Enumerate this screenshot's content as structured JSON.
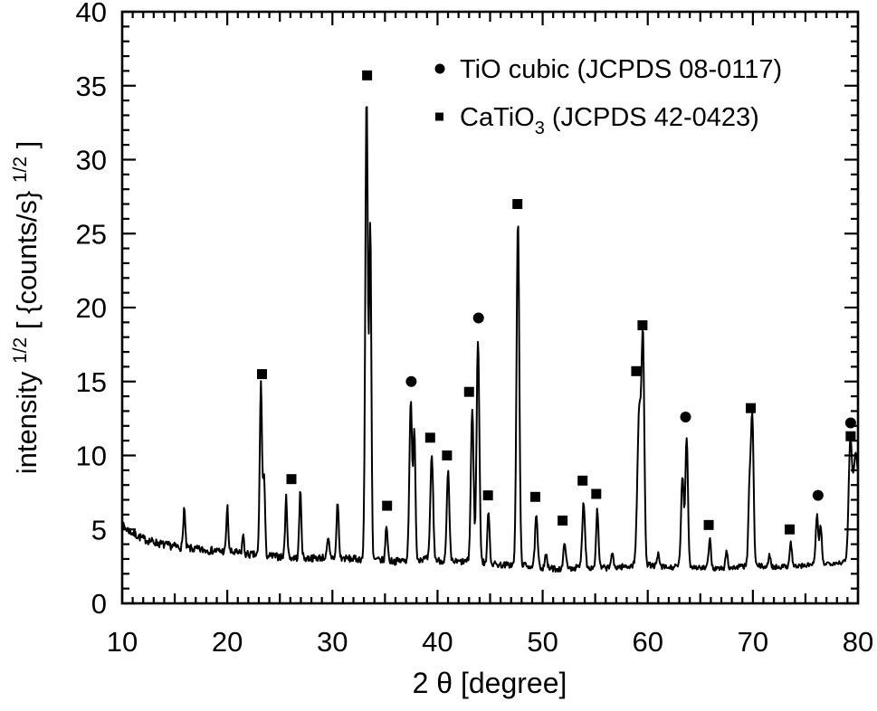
{
  "figure": {
    "background_color": "#ffffff",
    "ink_color": "#000000",
    "description": "Powder X-ray diffraction pattern with phase-identification markers"
  },
  "legend": {
    "items": [
      {
        "marker": "circle-icon",
        "label_parts": [
          {
            "t": "TiO cubic (JCPDS 08-0117)"
          }
        ],
        "label_plain": "TiO cubic (JCPDS 08-0117)"
      },
      {
        "marker": "square-icon",
        "label_parts": [
          {
            "t": "CaTiO"
          },
          {
            "t": "3",
            "style": "sub"
          },
          {
            "t": " (JCPDS 42-0423)"
          }
        ],
        "label_plain": "CaTiO3 (JCPDS 42-0423)"
      }
    ]
  },
  "chart_data": {
    "type": "line",
    "title": "",
    "xlabel": "2 θ [degree]",
    "ylabel_plain": "intensity 1/2 [ {counts/s} 1/2 ]",
    "ylabel_parts": [
      {
        "t": "intensity "
      },
      {
        "t": "1/2",
        "style": "sup"
      },
      {
        "t": " [ {counts/s} "
      },
      {
        "t": "1/2",
        "style": "sup"
      },
      {
        "t": " ]"
      }
    ],
    "xlim": [
      10,
      80
    ],
    "ylim": [
      0,
      40
    ],
    "grid": false,
    "legend_position": "top-right-inside",
    "x_major_ticks": [
      10,
      20,
      30,
      40,
      50,
      60,
      70,
      80
    ],
    "x_tick_labels": [
      "10",
      "20",
      "30",
      "40",
      "50",
      "60",
      "70",
      "80"
    ],
    "x_medium_step": 5,
    "x_minor_step": 1,
    "y_major_ticks": [
      0,
      5,
      10,
      15,
      20,
      25,
      30,
      35,
      40
    ],
    "y_tick_labels": [
      "0",
      "5",
      "10",
      "15",
      "20",
      "25",
      "30",
      "35",
      "40"
    ],
    "y_minor_step": 1,
    "curve": {
      "units": "x in degrees 2-theta, y in sqrt(counts/s)",
      "baseline": [
        [
          10,
          5.25
        ],
        [
          11,
          4.75
        ],
        [
          12,
          4.35
        ],
        [
          13,
          4.15
        ],
        [
          14,
          3.95
        ],
        [
          15,
          3.85
        ],
        [
          16,
          3.75
        ],
        [
          17,
          3.65
        ],
        [
          18,
          3.6
        ],
        [
          19,
          3.55
        ],
        [
          20,
          3.5
        ],
        [
          21,
          3.4
        ],
        [
          22,
          3.3
        ],
        [
          23,
          3.25
        ],
        [
          24,
          3.2
        ],
        [
          25,
          3.15
        ],
        [
          26,
          3.1
        ],
        [
          27,
          3.05
        ],
        [
          28,
          3.05
        ],
        [
          29,
          3.1
        ],
        [
          30,
          3.1
        ],
        [
          31,
          3.05
        ],
        [
          32,
          3.0
        ],
        [
          33,
          3.0
        ],
        [
          34,
          2.95
        ],
        [
          35,
          2.9
        ],
        [
          36,
          2.85
        ],
        [
          37,
          2.9
        ],
        [
          38,
          3.0
        ],
        [
          39,
          3.0
        ],
        [
          40,
          2.9
        ],
        [
          41,
          2.85
        ],
        [
          42,
          2.8
        ],
        [
          43,
          2.85
        ],
        [
          44,
          2.8
        ],
        [
          45,
          2.7
        ],
        [
          46,
          2.6
        ],
        [
          47,
          2.6
        ],
        [
          48,
          2.6
        ],
        [
          49,
          2.5
        ],
        [
          50,
          2.4
        ],
        [
          51,
          2.35
        ],
        [
          52,
          2.3
        ],
        [
          53,
          2.4
        ],
        [
          54,
          2.45
        ],
        [
          55,
          2.4
        ],
        [
          56,
          2.4
        ],
        [
          57,
          2.45
        ],
        [
          58,
          2.5
        ],
        [
          59,
          2.6
        ],
        [
          60,
          2.6
        ],
        [
          61,
          2.5
        ],
        [
          62,
          2.4
        ],
        [
          63,
          2.5
        ],
        [
          64,
          2.5
        ],
        [
          65,
          2.4
        ],
        [
          66,
          2.35
        ],
        [
          67,
          2.35
        ],
        [
          68,
          2.4
        ],
        [
          69,
          2.5
        ],
        [
          70,
          2.6
        ],
        [
          71,
          2.5
        ],
        [
          72,
          2.45
        ],
        [
          73,
          2.5
        ],
        [
          74,
          2.5
        ],
        [
          75,
          2.55
        ],
        [
          76,
          2.7
        ],
        [
          77,
          2.7
        ],
        [
          78,
          2.75
        ],
        [
          79,
          2.8
        ],
        [
          80,
          3.0
        ]
      ],
      "peaks_center_height_sigma": [
        [
          15.9,
          2.7,
          0.09
        ],
        [
          20.0,
          3.0,
          0.09
        ],
        [
          21.5,
          1.3,
          0.08
        ],
        [
          23.2,
          11.6,
          0.11
        ],
        [
          23.5,
          5.2,
          0.09
        ],
        [
          25.6,
          4.0,
          0.1
        ],
        [
          26.95,
          4.5,
          0.1
        ],
        [
          29.6,
          1.2,
          0.1
        ],
        [
          30.5,
          3.8,
          0.1
        ],
        [
          33.25,
          31.6,
          0.12
        ],
        [
          33.6,
          22.4,
          0.1
        ],
        [
          35.15,
          2.4,
          0.1
        ],
        [
          37.45,
          10.7,
          0.13
        ],
        [
          37.8,
          8.8,
          0.1
        ],
        [
          39.45,
          7.1,
          0.13
        ],
        [
          41.0,
          6.0,
          0.12
        ],
        [
          43.3,
          10.3,
          0.13
        ],
        [
          43.85,
          15.0,
          0.13
        ],
        [
          44.85,
          3.6,
          0.1
        ],
        [
          47.65,
          23.3,
          0.13
        ],
        [
          49.4,
          3.4,
          0.12
        ],
        [
          50.3,
          1.0,
          0.1
        ],
        [
          52.1,
          1.9,
          0.11
        ],
        [
          53.9,
          4.4,
          0.13
        ],
        [
          55.2,
          3.9,
          0.11
        ],
        [
          56.6,
          1.0,
          0.1
        ],
        [
          59.2,
          10.5,
          0.18
        ],
        [
          59.55,
          14.2,
          0.13
        ],
        [
          61.0,
          0.8,
          0.1
        ],
        [
          63.3,
          6.0,
          0.13
        ],
        [
          63.7,
          8.8,
          0.12
        ],
        [
          65.9,
          2.0,
          0.11
        ],
        [
          67.5,
          1.2,
          0.1
        ],
        [
          69.7,
          5.5,
          0.12
        ],
        [
          69.95,
          9.6,
          0.12
        ],
        [
          71.6,
          0.8,
          0.1
        ],
        [
          73.6,
          1.6,
          0.11
        ],
        [
          76.1,
          3.3,
          0.11
        ],
        [
          76.45,
          2.6,
          0.1
        ],
        [
          79.25,
          6.9,
          0.15
        ],
        [
          79.8,
          7.2,
          0.3
        ]
      ],
      "noise": {
        "amplitude_start": 0.28,
        "amplitude_end": 0.16,
        "seed": 7,
        "step_degrees": 0.06
      }
    },
    "markers": [
      {
        "phase": "TiO cubic (JCPDS 08-0117)",
        "shape": "circle",
        "points": [
          [
            37.5,
            15.0
          ],
          [
            43.9,
            19.3
          ],
          [
            63.6,
            12.6
          ],
          [
            76.2,
            7.3
          ],
          [
            79.3,
            12.2
          ]
        ]
      },
      {
        "phase": "CaTiO3 (JCPDS 42-0423)",
        "shape": "square",
        "points": [
          [
            23.3,
            15.5
          ],
          [
            26.1,
            8.4
          ],
          [
            33.3,
            35.7
          ],
          [
            35.2,
            6.6
          ],
          [
            39.3,
            11.2
          ],
          [
            40.9,
            10.0
          ],
          [
            43.0,
            14.3
          ],
          [
            44.8,
            7.3
          ],
          [
            47.6,
            27.0
          ],
          [
            49.3,
            7.2
          ],
          [
            51.9,
            5.6
          ],
          [
            53.8,
            8.3
          ],
          [
            55.1,
            7.4
          ],
          [
            58.9,
            15.7
          ],
          [
            59.5,
            18.8
          ],
          [
            65.8,
            5.3
          ],
          [
            69.8,
            13.2
          ],
          [
            73.5,
            5.0
          ],
          [
            79.3,
            11.3
          ]
        ]
      }
    ]
  }
}
